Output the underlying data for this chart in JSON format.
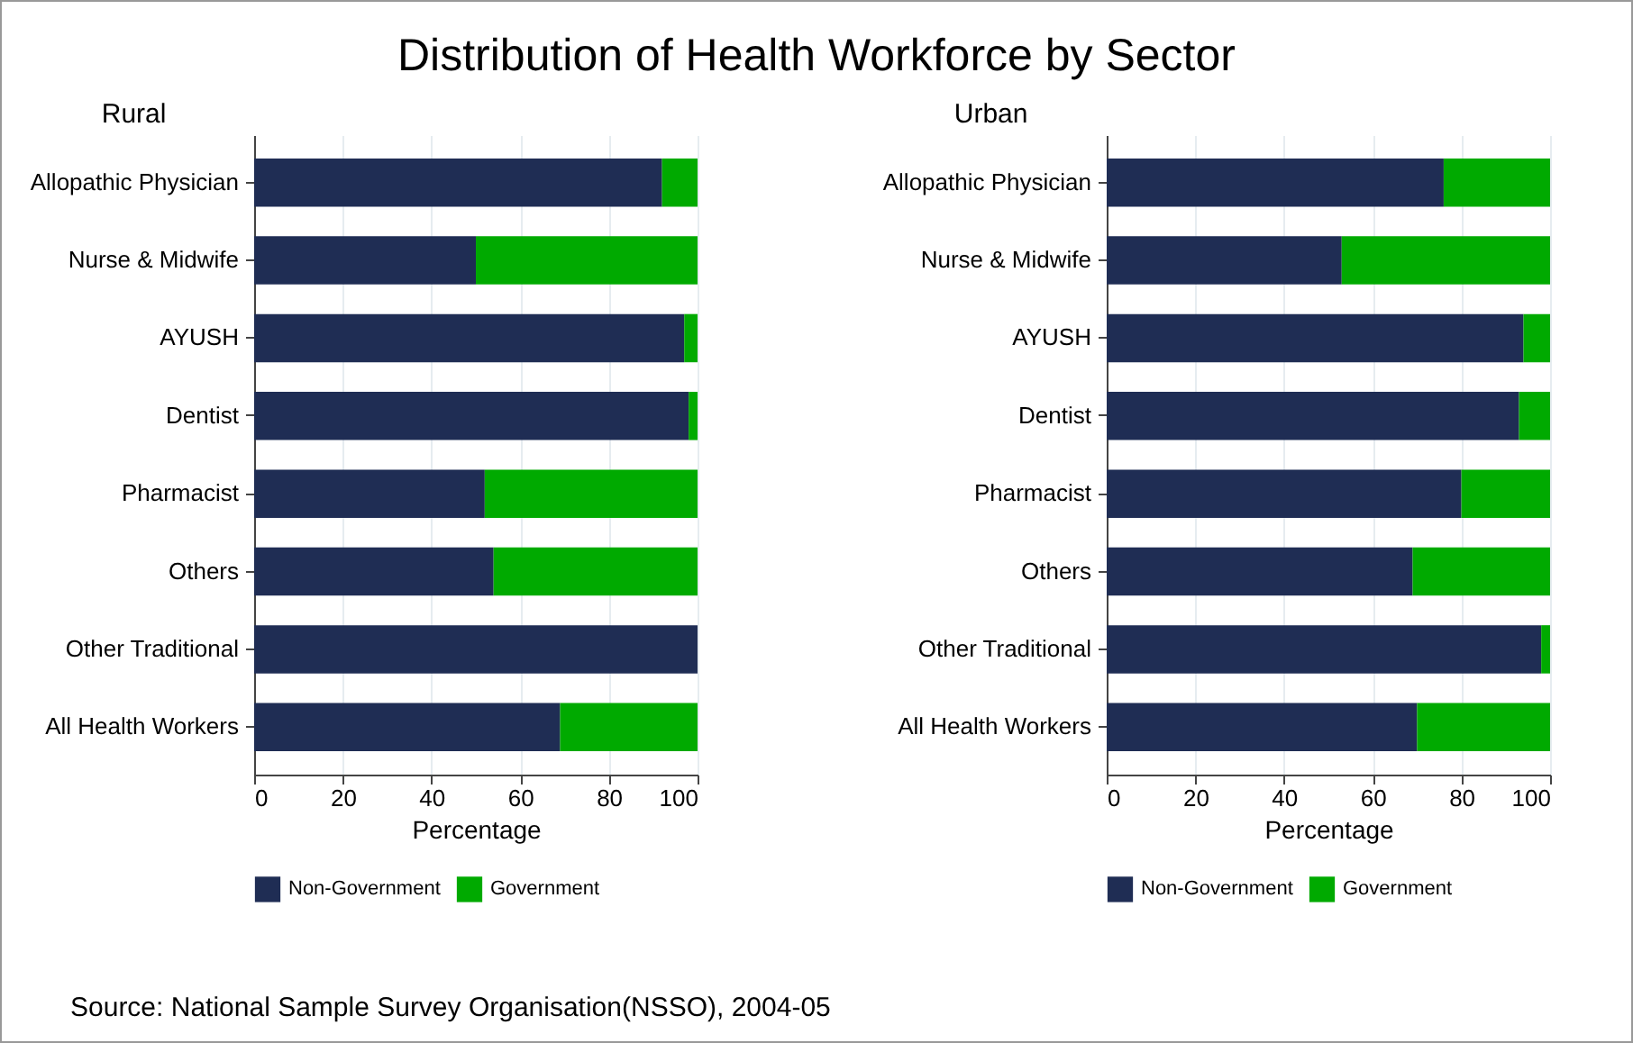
{
  "chart_data": [
    {
      "type": "bar",
      "title": "Distribution of Health Workforce by Sector",
      "subtitle": "Rural",
      "orientation": "horizontal",
      "stacked": true,
      "xlabel": "Percentage",
      "categories": [
        "Allopathic Physician",
        "Nurse & Midwife",
        "AYUSH",
        "Dentist",
        "Pharmacist",
        "Others",
        "Other Traditional",
        "All Health Workers"
      ],
      "series": [
        {
          "name": "Non-Government",
          "color": "#1f2d54",
          "values": [
            92,
            50,
            97,
            98,
            52,
            54,
            100,
            69
          ]
        },
        {
          "name": "Government",
          "color": "#00aa00",
          "values": [
            8,
            50,
            3,
            2,
            48,
            46,
            0,
            31
          ]
        }
      ],
      "xlim": [
        0,
        100
      ],
      "xticks": [
        0,
        20,
        40,
        60,
        80,
        100
      ],
      "grid": "x",
      "legend": "bottom",
      "annotations": [
        "Source: National Sample Survey Organisation(NSSO), 2004-05"
      ]
    },
    {
      "type": "bar",
      "subtitle": "Urban",
      "orientation": "horizontal",
      "stacked": true,
      "xlabel": "Percentage",
      "categories": [
        "Allopathic Physician",
        "Nurse & Midwife",
        "AYUSH",
        "Dentist",
        "Pharmacist",
        "Others",
        "Other Traditional",
        "All Health Workers"
      ],
      "series": [
        {
          "name": "Non-Government",
          "color": "#1f2d54",
          "values": [
            76,
            53,
            94,
            93,
            80,
            69,
            98,
            70
          ]
        },
        {
          "name": "Government",
          "color": "#00aa00",
          "values": [
            24,
            47,
            6,
            7,
            20,
            31,
            2,
            30
          ]
        }
      ],
      "xlim": [
        0,
        100
      ],
      "xticks": [
        0,
        20,
        40,
        60,
        80,
        100
      ],
      "grid": "x",
      "legend": "bottom"
    }
  ]
}
